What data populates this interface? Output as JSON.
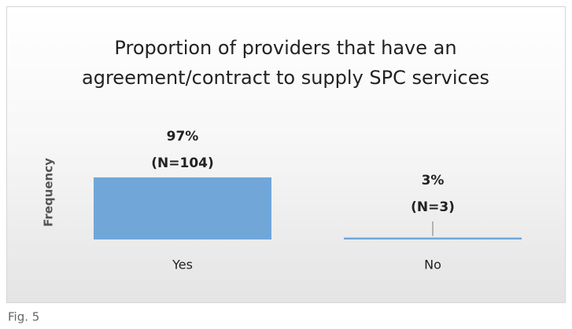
{
  "chart_data": {
    "type": "bar",
    "title": [
      "Proportion of providers that have an",
      "agreement/contract to supply SPC services"
    ],
    "y_label": "Frequency",
    "categories": [
      "Yes",
      "No"
    ],
    "values": [
      97,
      3
    ],
    "value_labels": [
      "97%",
      "3%"
    ],
    "count_labels": [
      "(N=104)",
      "(N=3)"
    ],
    "color": "#71a6d9"
  },
  "caption": "Fig. 5"
}
